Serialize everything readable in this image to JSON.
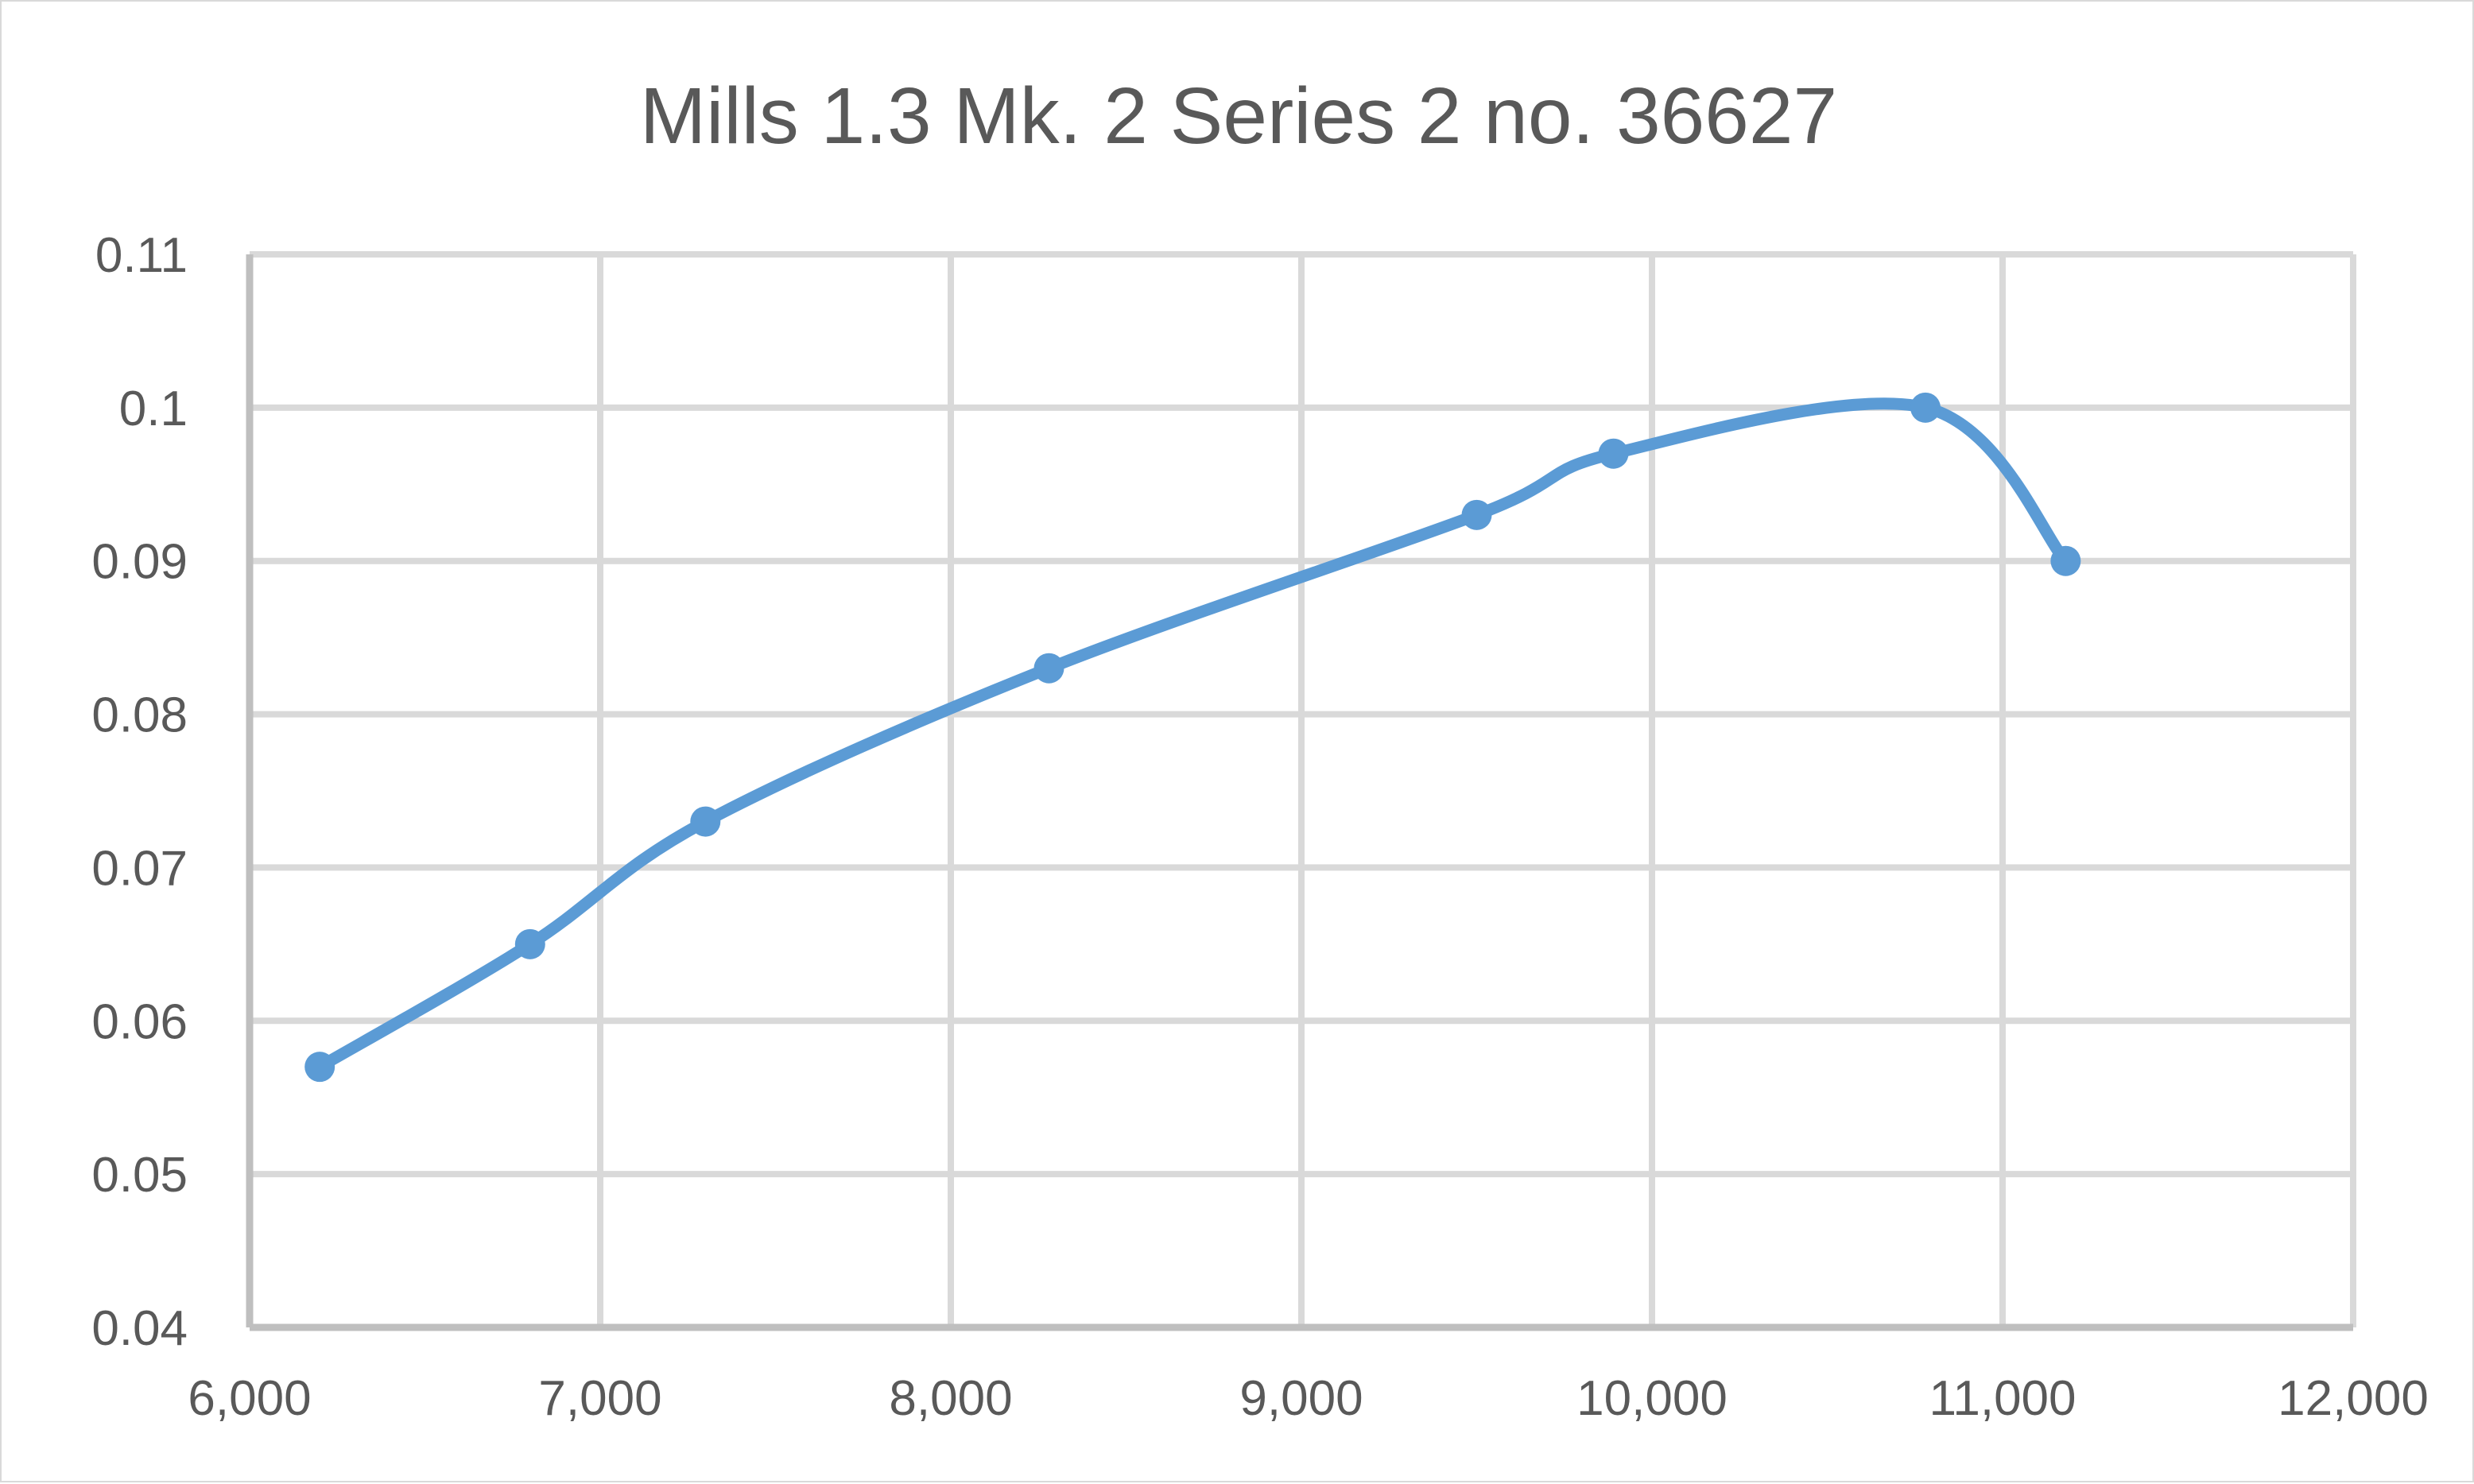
{
  "chart_data": {
    "type": "scatter",
    "title": "Mills 1.3 Mk. 2 Series 2 no. 36627",
    "xlabel": "",
    "ylabel": "",
    "xlim": [
      6000,
      12000
    ],
    "ylim": [
      0.04,
      0.11
    ],
    "x_ticks": [
      6000,
      7000,
      8000,
      9000,
      10000,
      11000,
      12000
    ],
    "x_tick_labels": [
      "6,000",
      "7,000",
      "8,000",
      "9,000",
      "10,000",
      "11,000",
      "12,000"
    ],
    "y_ticks": [
      0.04,
      0.05,
      0.06,
      0.07,
      0.08,
      0.09,
      0.1,
      0.11
    ],
    "y_tick_labels": [
      "0.04",
      "0.05",
      "0.06",
      "0.07",
      "0.08",
      "0.09",
      "0.1",
      "0.11"
    ],
    "grid": true,
    "legend": "none",
    "smooth": true,
    "series": [
      {
        "color": "#5b9bd5",
        "x": [
          6200,
          6800,
          7300,
          8280,
          9500,
          9890,
          10780,
          11180
        ],
        "y": [
          0.057,
          0.065,
          0.073,
          0.083,
          0.093,
          0.097,
          0.1,
          0.09
        ]
      }
    ]
  },
  "colors": {
    "grid": "#d9d9d9",
    "axis_text": "#595959",
    "series": "#5b9bd5"
  }
}
